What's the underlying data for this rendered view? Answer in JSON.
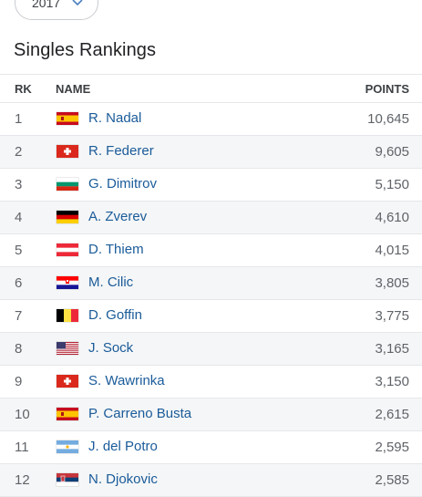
{
  "year_select": {
    "value": "2017",
    "icon": "chevron-down-icon"
  },
  "title": "Singles Rankings",
  "headers": {
    "rank": "RK",
    "name": "NAME",
    "points": "POINTS"
  },
  "rows": [
    {
      "rank": "1",
      "flag": "spain",
      "name": "R. Nadal",
      "points": "10,645"
    },
    {
      "rank": "2",
      "flag": "switzerland",
      "name": "R. Federer",
      "points": "9,605"
    },
    {
      "rank": "3",
      "flag": "bulgaria",
      "name": "G. Dimitrov",
      "points": "5,150"
    },
    {
      "rank": "4",
      "flag": "germany",
      "name": "A. Zverev",
      "points": "4,610"
    },
    {
      "rank": "5",
      "flag": "austria",
      "name": "D. Thiem",
      "points": "4,015"
    },
    {
      "rank": "6",
      "flag": "croatia",
      "name": "M. Cilic",
      "points": "3,805"
    },
    {
      "rank": "7",
      "flag": "belgium",
      "name": "D. Goffin",
      "points": "3,775"
    },
    {
      "rank": "8",
      "flag": "usa",
      "name": "J. Sock",
      "points": "3,165"
    },
    {
      "rank": "9",
      "flag": "switzerland",
      "name": "S. Wawrinka",
      "points": "3,150"
    },
    {
      "rank": "10",
      "flag": "spain",
      "name": "P. Carreno Busta",
      "points": "2,615"
    },
    {
      "rank": "11",
      "flag": "argentina",
      "name": "J. del Potro",
      "points": "2,595"
    },
    {
      "rank": "12",
      "flag": "serbia",
      "name": "N. Djokovic",
      "points": "2,585"
    }
  ],
  "colors": {
    "link": "#1a5b99",
    "row_alt": "#f5f6f7",
    "divider": "#e6e7ea"
  }
}
